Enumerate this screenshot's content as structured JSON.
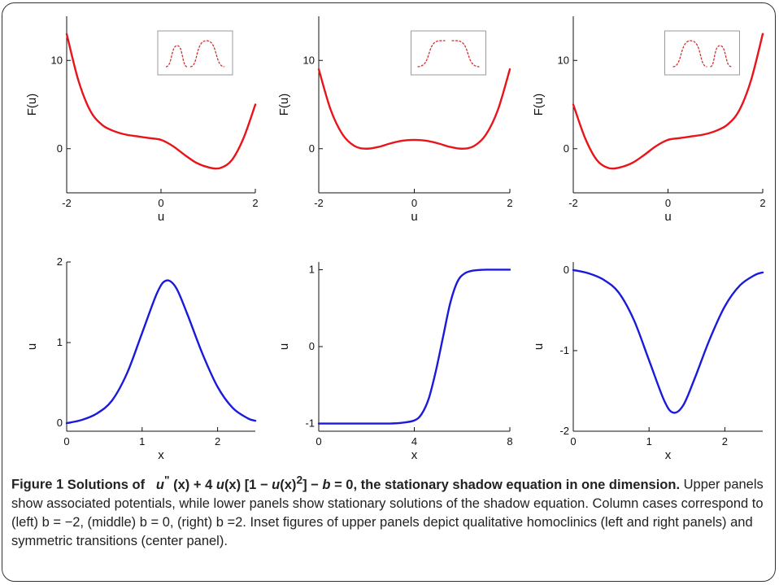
{
  "caption": {
    "figure_label": "Figure 1",
    "title_pre": "Solutions of",
    "eq_u": "u",
    "eq_pp": "\"",
    "eq_x1": "(x)",
    "eq_plus4": " + 4 ",
    "eq_u2": "u",
    "eq_x2": "(x) [1 − ",
    "eq_u3": "u",
    "eq_x3": "(x)",
    "eq_sq": "2",
    "eq_rest": "] − ",
    "eq_b": "b",
    "eq_zero": " = 0, the stationary shadow equation in one dimension.",
    "body": " Upper panels show associated potentials, while lower panels show stationary solutions of the shadow equation. Column cases correspond to (left) b = −2, (middle) b = 0, (right) b =2. Inset figures of upper panels depict qualitative homoclinics (left and right panels) and symmetric transitions (center panel)."
  },
  "colors": {
    "potential": "#e8141a",
    "solution": "#1a1adc",
    "axis": "#111111",
    "inset": "#cc3333"
  },
  "chart_data": [
    {
      "id": "top-left",
      "type": "line",
      "xlabel": "u",
      "ylabel": "F(u)",
      "xlim": [
        -2,
        2
      ],
      "ylim": [
        -5,
        15
      ],
      "xticks": [
        "-2",
        "0",
        "2"
      ],
      "yticks": [
        "0",
        "10"
      ],
      "grid": false,
      "inset": "homoclinic-left",
      "series": [
        {
          "x": [
            -2,
            -1.75,
            -1.5,
            -1.25,
            -1,
            -0.75,
            -0.5,
            -0.25,
            0,
            0.25,
            0.5,
            0.75,
            1,
            1.25,
            1.5,
            1.75,
            2
          ],
          "y": [
            13,
            7.7,
            4.3,
            2.7,
            2,
            1.6,
            1.4,
            1.2,
            1,
            0.3,
            -0.7,
            -1.6,
            -2.1,
            -2.2,
            -1.3,
            1.2,
            5
          ]
        }
      ]
    },
    {
      "id": "top-middle",
      "type": "line",
      "xlabel": "u",
      "ylabel": "F(u)",
      "xlim": [
        -2,
        2
      ],
      "ylim": [
        -5,
        15
      ],
      "xticks": [
        "-2",
        "0",
        "2"
      ],
      "yticks": [
        "0",
        "10"
      ],
      "grid": false,
      "inset": "symmetric-transition",
      "series": [
        {
          "x": [
            -2,
            -1.75,
            -1.5,
            -1.25,
            -1,
            -0.75,
            -0.5,
            -0.25,
            0,
            0.25,
            0.5,
            0.75,
            1,
            1.25,
            1.5,
            1.75,
            2
          ],
          "y": [
            9,
            4.4,
            1.6,
            0.3,
            0,
            0.2,
            0.6,
            0.9,
            1,
            0.9,
            0.6,
            0.2,
            0,
            0.3,
            1.6,
            4.4,
            9
          ]
        }
      ]
    },
    {
      "id": "top-right",
      "type": "line",
      "xlabel": "u",
      "ylabel": "F(u)",
      "xlim": [
        -2,
        2
      ],
      "ylim": [
        -5,
        15
      ],
      "xticks": [
        "-2",
        "0",
        "2"
      ],
      "yticks": [
        "0",
        "10"
      ],
      "grid": false,
      "inset": "homoclinic-right",
      "series": [
        {
          "x": [
            -2,
            -1.75,
            -1.5,
            -1.25,
            -1,
            -0.75,
            -0.5,
            -0.25,
            0,
            0.25,
            0.5,
            0.75,
            1,
            1.25,
            1.5,
            1.75,
            2
          ],
          "y": [
            5,
            1.2,
            -1.3,
            -2.2,
            -2.1,
            -1.6,
            -0.7,
            0.3,
            1,
            1.2,
            1.4,
            1.6,
            2,
            2.7,
            4.3,
            7.7,
            13
          ]
        }
      ]
    },
    {
      "id": "bottom-left",
      "type": "line",
      "xlabel": "x",
      "ylabel": "u",
      "xlim": [
        0,
        2.5
      ],
      "ylim": [
        -0.1,
        2
      ],
      "xticks": [
        "0",
        "1",
        "2"
      ],
      "yticks": [
        "0",
        "1",
        "2"
      ],
      "grid": false,
      "series": [
        {
          "x": [
            0,
            0.2,
            0.4,
            0.6,
            0.8,
            1,
            1.2,
            1.32,
            1.45,
            1.6,
            1.8,
            2,
            2.2,
            2.4,
            2.5
          ],
          "y": [
            0,
            0.04,
            0.12,
            0.28,
            0.62,
            1.12,
            1.62,
            1.77,
            1.68,
            1.35,
            0.86,
            0.45,
            0.19,
            0.06,
            0.03
          ]
        }
      ]
    },
    {
      "id": "bottom-middle",
      "type": "line",
      "xlabel": "x",
      "ylabel": "u",
      "xlim": [
        0,
        8
      ],
      "ylim": [
        -1.1,
        1.1
      ],
      "xticks": [
        "0",
        "4",
        "8"
      ],
      "yticks": [
        "-1",
        "0",
        "1"
      ],
      "grid": false,
      "series": [
        {
          "x": [
            0,
            1,
            2,
            3,
            3.5,
            4,
            4.3,
            4.6,
            4.9,
            5.2,
            5.5,
            5.8,
            6.1,
            6.5,
            7,
            7.5,
            8
          ],
          "y": [
            -1,
            -1,
            -1,
            -1,
            -0.99,
            -0.96,
            -0.88,
            -0.68,
            -0.32,
            0.12,
            0.56,
            0.84,
            0.95,
            0.99,
            1,
            1,
            1
          ]
        }
      ]
    },
    {
      "id": "bottom-right",
      "type": "line",
      "xlabel": "x",
      "ylabel": "u",
      "xlim": [
        0,
        2.5
      ],
      "ylim": [
        -2,
        0.1
      ],
      "xticks": [
        "0",
        "1",
        "2"
      ],
      "yticks": [
        "0",
        "-1",
        "-2"
      ],
      "grid": false,
      "series": [
        {
          "x": [
            0,
            0.2,
            0.4,
            0.6,
            0.8,
            1,
            1.2,
            1.32,
            1.45,
            1.6,
            1.8,
            2,
            2.2,
            2.4,
            2.5
          ],
          "y": [
            0,
            -0.04,
            -0.12,
            -0.28,
            -0.62,
            -1.12,
            -1.62,
            -1.77,
            -1.68,
            -1.35,
            -0.86,
            -0.45,
            -0.19,
            -0.06,
            -0.03
          ]
        }
      ]
    }
  ]
}
